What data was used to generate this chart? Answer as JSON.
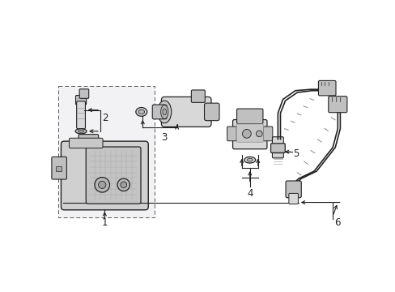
{
  "bg_color": "#ffffff",
  "lc": "#222222",
  "fl": "#d8d8d8",
  "fm": "#c0c0c0",
  "lw": 0.8,
  "box_fill": "#efefef",
  "grid_color": "#aaaaaa"
}
